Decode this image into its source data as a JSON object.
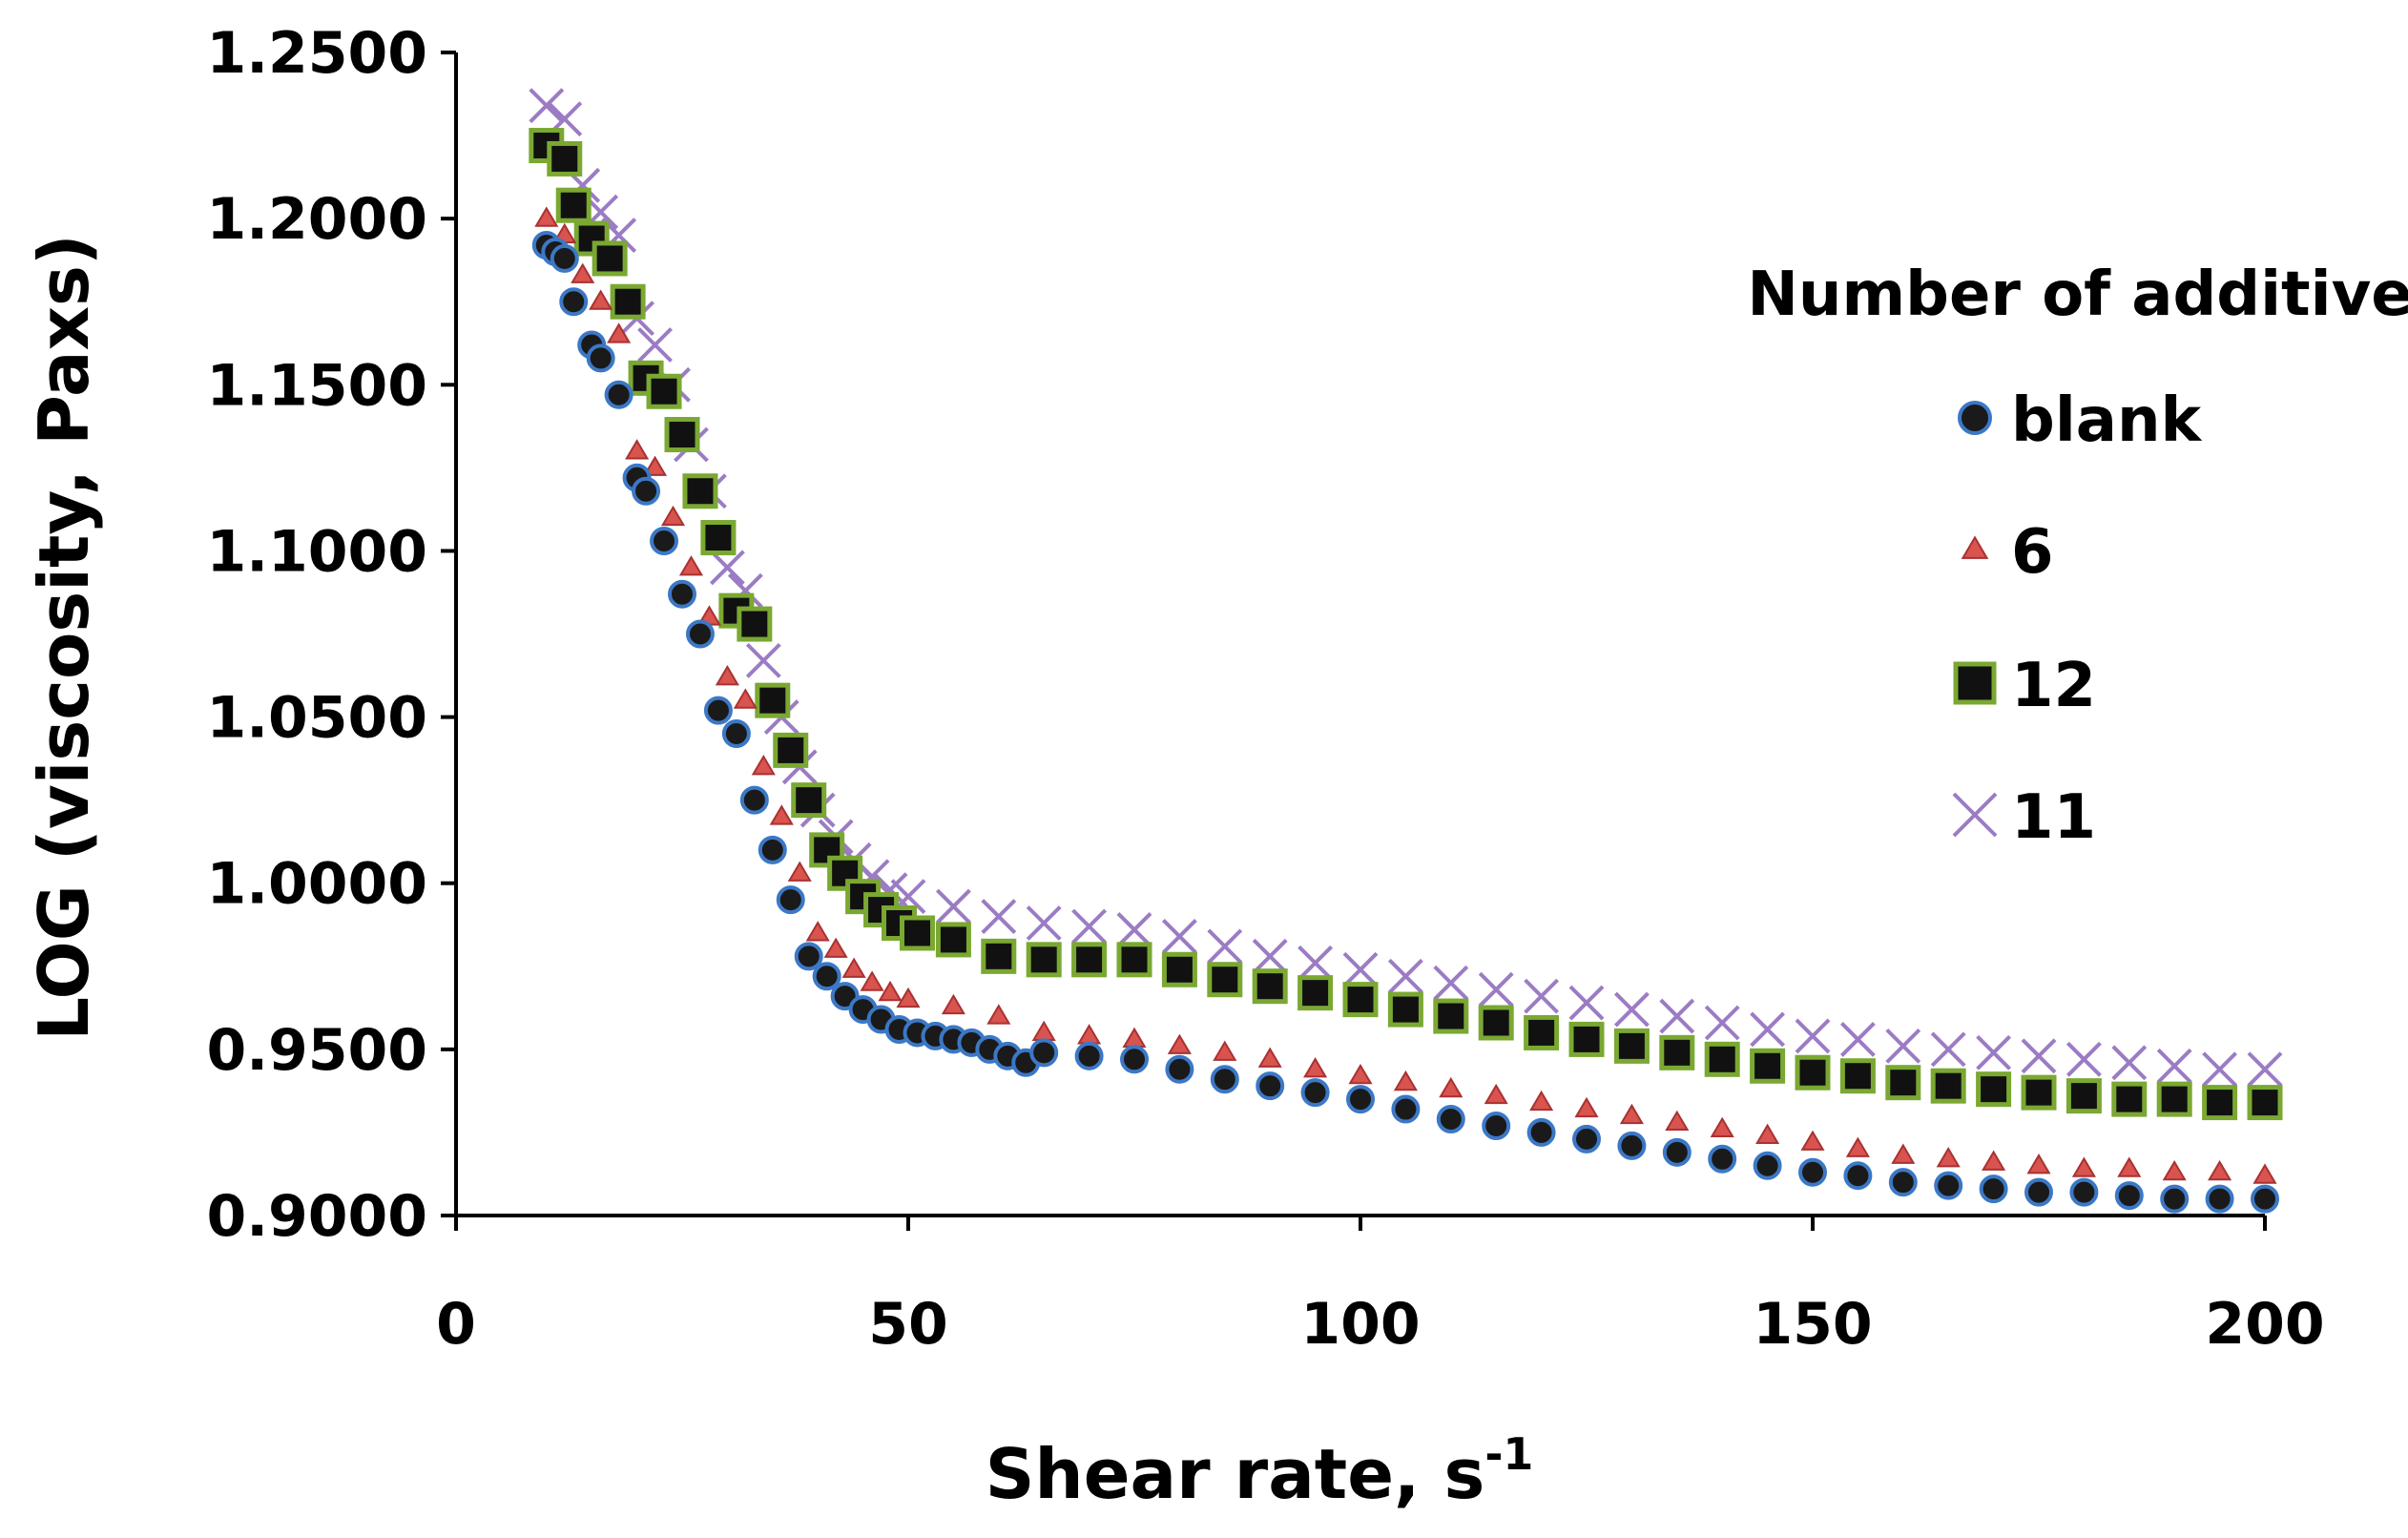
{
  "chart_data": {
    "type": "scatter",
    "title": "",
    "xlabel": "Shear rate, s",
    "xlabel_superscript": "-1",
    "ylabel": "LOG (viscosity, Paxs)",
    "xlim": [
      0,
      200
    ],
    "ylim": [
      0.9,
      1.25
    ],
    "xticks": [
      "0",
      "50",
      "100",
      "150",
      "200"
    ],
    "yticks": [
      "0.9000",
      "0.9500",
      "1.0000",
      "1.0500",
      "1.1000",
      "1.1500",
      "1.2000",
      "1.2500"
    ],
    "grid": false,
    "legend": {
      "title": "Number of additive",
      "position": "right"
    },
    "series": [
      {
        "name": "blank",
        "marker": "circle",
        "color": "#1a1a1a",
        "edge": "#3b78c6",
        "points": [
          [
            10,
            1.192
          ],
          [
            11,
            1.19
          ],
          [
            12,
            1.188
          ],
          [
            13,
            1.175
          ],
          [
            15,
            1.162
          ],
          [
            16,
            1.158
          ],
          [
            18,
            1.147
          ],
          [
            20,
            1.122
          ],
          [
            21,
            1.118
          ],
          [
            23,
            1.103
          ],
          [
            25,
            1.087
          ],
          [
            27,
            1.075
          ],
          [
            29,
            1.052
          ],
          [
            31,
            1.045
          ],
          [
            33,
            1.025
          ],
          [
            35,
            1.01
          ],
          [
            37,
            0.995
          ],
          [
            39,
            0.978
          ],
          [
            41,
            0.972
          ],
          [
            43,
            0.966
          ],
          [
            45,
            0.962
          ],
          [
            47,
            0.959
          ],
          [
            49,
            0.956
          ],
          [
            51,
            0.955
          ],
          [
            53,
            0.954
          ],
          [
            55,
            0.953
          ],
          [
            57,
            0.952
          ],
          [
            59,
            0.95
          ],
          [
            61,
            0.948
          ],
          [
            63,
            0.946
          ],
          [
            65,
            0.949
          ],
          [
            70,
            0.948
          ],
          [
            75,
            0.947
          ],
          [
            80,
            0.944
          ],
          [
            85,
            0.941
          ],
          [
            90,
            0.939
          ],
          [
            95,
            0.937
          ],
          [
            100,
            0.935
          ],
          [
            105,
            0.932
          ],
          [
            110,
            0.929
          ],
          [
            115,
            0.927
          ],
          [
            120,
            0.925
          ],
          [
            125,
            0.923
          ],
          [
            130,
            0.921
          ],
          [
            135,
            0.919
          ],
          [
            140,
            0.917
          ],
          [
            145,
            0.915
          ],
          [
            150,
            0.913
          ],
          [
            155,
            0.912
          ],
          [
            160,
            0.91
          ],
          [
            165,
            0.909
          ],
          [
            170,
            0.908
          ],
          [
            175,
            0.907
          ],
          [
            180,
            0.907
          ],
          [
            185,
            0.906
          ],
          [
            190,
            0.905
          ],
          [
            195,
            0.905
          ],
          [
            200,
            0.905
          ]
        ]
      },
      {
        "name": "6",
        "marker": "triangle",
        "color": "#d9534f",
        "edge": "#d9534f",
        "points": [
          [
            10,
            1.2
          ],
          [
            12,
            1.195
          ],
          [
            14,
            1.183
          ],
          [
            16,
            1.175
          ],
          [
            18,
            1.165
          ],
          [
            20,
            1.13
          ],
          [
            22,
            1.125
          ],
          [
            24,
            1.11
          ],
          [
            26,
            1.095
          ],
          [
            28,
            1.08
          ],
          [
            30,
            1.062
          ],
          [
            32,
            1.055
          ],
          [
            34,
            1.035
          ],
          [
            36,
            1.02
          ],
          [
            38,
            1.003
          ],
          [
            40,
            0.985
          ],
          [
            42,
            0.98
          ],
          [
            44,
            0.974
          ],
          [
            46,
            0.97
          ],
          [
            48,
            0.967
          ],
          [
            50,
            0.965
          ],
          [
            55,
            0.963
          ],
          [
            60,
            0.96
          ],
          [
            65,
            0.955
          ],
          [
            70,
            0.954
          ],
          [
            75,
            0.953
          ],
          [
            80,
            0.951
          ],
          [
            85,
            0.949
          ],
          [
            90,
            0.947
          ],
          [
            95,
            0.944
          ],
          [
            100,
            0.942
          ],
          [
            105,
            0.94
          ],
          [
            110,
            0.938
          ],
          [
            115,
            0.936
          ],
          [
            120,
            0.934
          ],
          [
            125,
            0.932
          ],
          [
            130,
            0.93
          ],
          [
            135,
            0.928
          ],
          [
            140,
            0.926
          ],
          [
            145,
            0.924
          ],
          [
            150,
            0.922
          ],
          [
            155,
            0.92
          ],
          [
            160,
            0.918
          ],
          [
            165,
            0.917
          ],
          [
            170,
            0.916
          ],
          [
            175,
            0.915
          ],
          [
            180,
            0.914
          ],
          [
            185,
            0.914
          ],
          [
            190,
            0.913
          ],
          [
            195,
            0.913
          ],
          [
            200,
            0.912
          ]
        ]
      },
      {
        "name": "12",
        "marker": "square",
        "color": "#111111",
        "edge": "#7aa832",
        "points": [
          [
            10,
            1.222
          ],
          [
            12,
            1.218
          ],
          [
            13,
            1.204
          ],
          [
            15,
            1.194
          ],
          [
            17,
            1.188
          ],
          [
            19,
            1.175
          ],
          [
            21,
            1.152
          ],
          [
            23,
            1.148
          ],
          [
            25,
            1.135
          ],
          [
            27,
            1.118
          ],
          [
            29,
            1.104
          ],
          [
            31,
            1.082
          ],
          [
            33,
            1.078
          ],
          [
            35,
            1.055
          ],
          [
            37,
            1.04
          ],
          [
            39,
            1.025
          ],
          [
            41,
            1.01
          ],
          [
            43,
            1.003
          ],
          [
            45,
            0.996
          ],
          [
            47,
            0.992
          ],
          [
            49,
            0.988
          ],
          [
            51,
            0.985
          ],
          [
            55,
            0.983
          ],
          [
            60,
            0.978
          ],
          [
            65,
            0.977
          ],
          [
            70,
            0.977
          ],
          [
            75,
            0.977
          ],
          [
            80,
            0.974
          ],
          [
            85,
            0.971
          ],
          [
            90,
            0.969
          ],
          [
            95,
            0.967
          ],
          [
            100,
            0.965
          ],
          [
            105,
            0.962
          ],
          [
            110,
            0.96
          ],
          [
            115,
            0.958
          ],
          [
            120,
            0.955
          ],
          [
            125,
            0.953
          ],
          [
            130,
            0.951
          ],
          [
            135,
            0.949
          ],
          [
            140,
            0.947
          ],
          [
            145,
            0.945
          ],
          [
            150,
            0.943
          ],
          [
            155,
            0.942
          ],
          [
            160,
            0.94
          ],
          [
            165,
            0.939
          ],
          [
            170,
            0.938
          ],
          [
            175,
            0.937
          ],
          [
            180,
            0.936
          ],
          [
            185,
            0.935
          ],
          [
            190,
            0.935
          ],
          [
            195,
            0.934
          ],
          [
            200,
            0.934
          ]
        ]
      },
      {
        "name": "11",
        "marker": "x",
        "color": "#9b7cc4",
        "edge": "#9b7cc4",
        "points": [
          [
            10,
            1.234
          ],
          [
            12,
            1.23
          ],
          [
            14,
            1.21
          ],
          [
            16,
            1.202
          ],
          [
            18,
            1.195
          ],
          [
            20,
            1.17
          ],
          [
            22,
            1.162
          ],
          [
            24,
            1.15
          ],
          [
            26,
            1.132
          ],
          [
            28,
            1.118
          ],
          [
            30,
            1.095
          ],
          [
            32,
            1.088
          ],
          [
            34,
            1.067
          ],
          [
            36,
            1.05
          ],
          [
            38,
            1.035
          ],
          [
            40,
            1.022
          ],
          [
            42,
            1.014
          ],
          [
            44,
            1.007
          ],
          [
            46,
            1.002
          ],
          [
            48,
            0.998
          ],
          [
            50,
            0.996
          ],
          [
            55,
            0.993
          ],
          [
            60,
            0.99
          ],
          [
            65,
            0.988
          ],
          [
            70,
            0.987
          ],
          [
            75,
            0.986
          ],
          [
            80,
            0.984
          ],
          [
            85,
            0.981
          ],
          [
            90,
            0.978
          ],
          [
            95,
            0.976
          ],
          [
            100,
            0.974
          ],
          [
            105,
            0.972
          ],
          [
            110,
            0.97
          ],
          [
            115,
            0.968
          ],
          [
            120,
            0.966
          ],
          [
            125,
            0.964
          ],
          [
            130,
            0.962
          ],
          [
            135,
            0.96
          ],
          [
            140,
            0.958
          ],
          [
            145,
            0.956
          ],
          [
            150,
            0.954
          ],
          [
            155,
            0.953
          ],
          [
            160,
            0.951
          ],
          [
            165,
            0.95
          ],
          [
            170,
            0.949
          ],
          [
            175,
            0.948
          ],
          [
            180,
            0.947
          ],
          [
            185,
            0.946
          ],
          [
            190,
            0.945
          ],
          [
            195,
            0.944
          ],
          [
            200,
            0.944
          ]
        ]
      }
    ]
  }
}
